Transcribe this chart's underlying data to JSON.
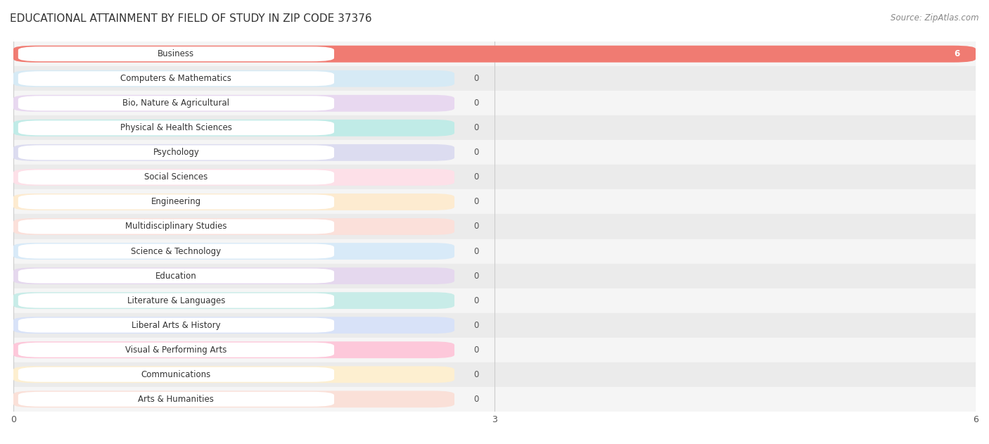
{
  "title": "EDUCATIONAL ATTAINMENT BY FIELD OF STUDY IN ZIP CODE 37376",
  "source": "Source: ZipAtlas.com",
  "categories": [
    "Business",
    "Computers & Mathematics",
    "Bio, Nature & Agricultural",
    "Physical & Health Sciences",
    "Psychology",
    "Social Sciences",
    "Engineering",
    "Multidisciplinary Studies",
    "Science & Technology",
    "Education",
    "Literature & Languages",
    "Liberal Arts & History",
    "Visual & Performing Arts",
    "Communications",
    "Arts & Humanities"
  ],
  "values": [
    6,
    0,
    0,
    0,
    0,
    0,
    0,
    0,
    0,
    0,
    0,
    0,
    0,
    0,
    0
  ],
  "bar_colors": [
    "#f07b72",
    "#92c5de",
    "#c9a9d4",
    "#7ecdc5",
    "#b3b3d9",
    "#f9a8b8",
    "#fac98a",
    "#f4a99a",
    "#a8c8e8",
    "#c4aed0",
    "#88cfc5",
    "#a8b8e8",
    "#f888a8",
    "#fad088",
    "#f4b8a8"
  ],
  "bar_light_colors": [
    "#fad4d1",
    "#d6eaf5",
    "#e8d8f0",
    "#c0ebe7",
    "#dcdcf0",
    "#fde0e8",
    "#fdebd0",
    "#fbe0da",
    "#d8eaf8",
    "#e5d8ee",
    "#c8ece8",
    "#d8e2f8",
    "#fdc8da",
    "#fdefd0",
    "#fae0d8"
  ],
  "xlim": [
    0,
    6
  ],
  "xticks": [
    0,
    3,
    6
  ],
  "bar_height": 0.68,
  "background_color": "#ffffff",
  "title_fontsize": 11,
  "label_fontsize": 8.5,
  "value_fontsize": 8.5,
  "source_fontsize": 8.5
}
